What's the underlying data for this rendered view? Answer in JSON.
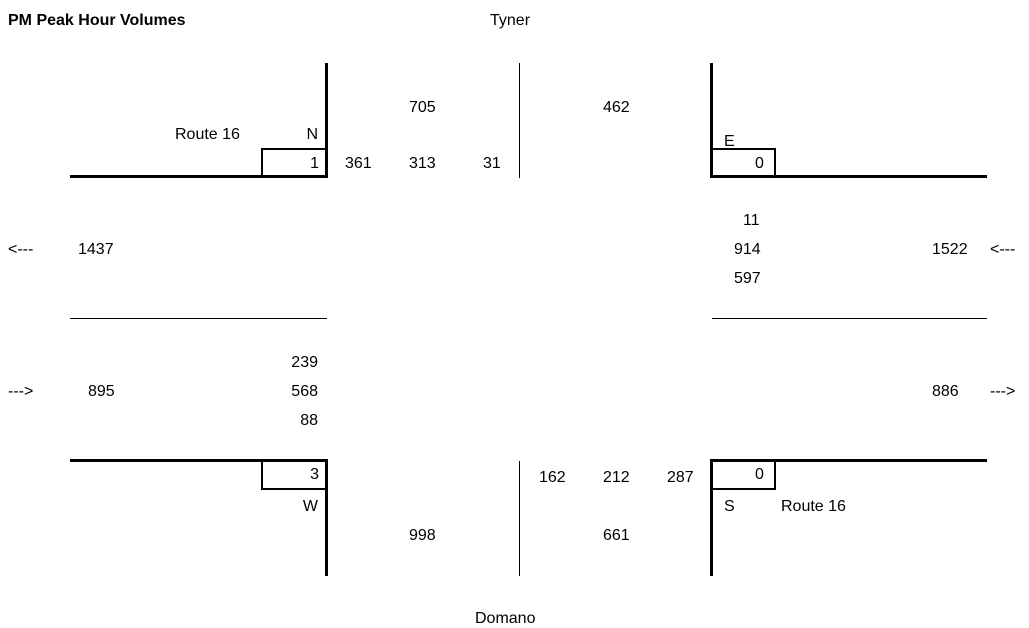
{
  "title": "PM Peak Hour Volumes",
  "streets": {
    "north": "Tyner",
    "south": "Domano",
    "west": "Route 16",
    "east": "Route 16"
  },
  "approach_letters": {
    "north": "N",
    "east": "E",
    "south": "S",
    "west": "W"
  },
  "arrows": {
    "left": "<---",
    "right": "--->"
  },
  "north": {
    "outbound": "705",
    "inbound": "462",
    "box": "1",
    "right": "361",
    "through": "313",
    "left": "31"
  },
  "east": {
    "box": "0",
    "left": "11",
    "through": "914",
    "right": "597",
    "approach": "1522"
  },
  "west": {
    "exit": "1437",
    "left": "239",
    "through": "568",
    "right": "88",
    "approach": "895",
    "box": "3"
  },
  "south": {
    "left": "162",
    "through": "212",
    "right": "287",
    "box": "0",
    "inbound": "998",
    "outbound": "661"
  },
  "east_exit": "886"
}
